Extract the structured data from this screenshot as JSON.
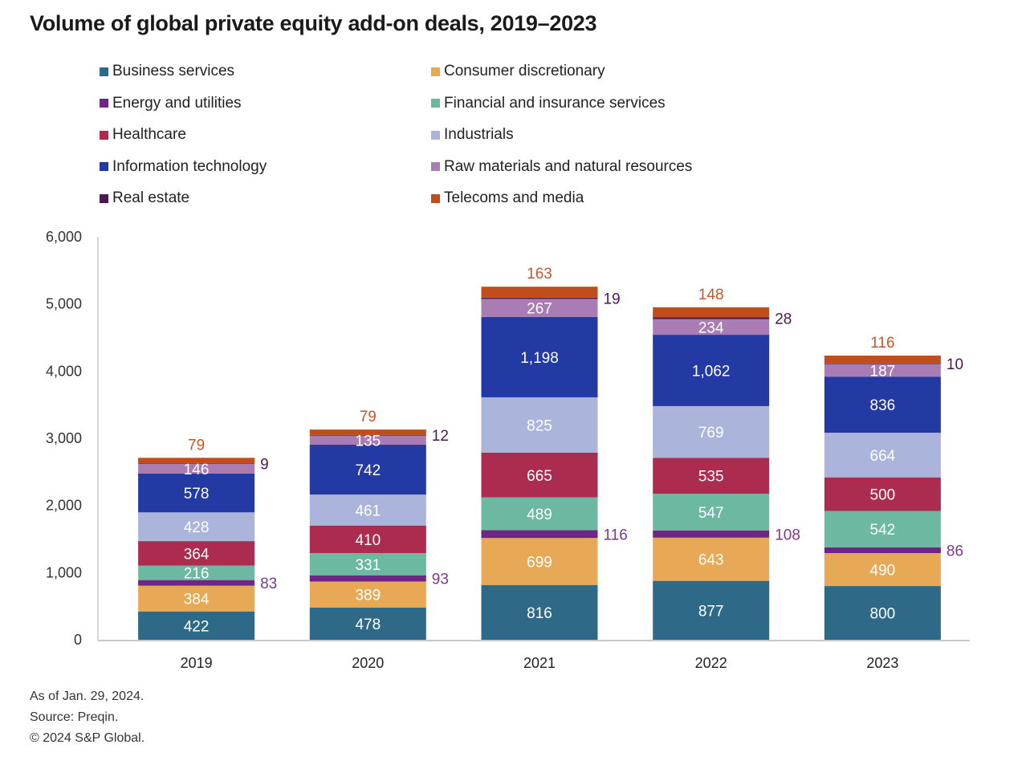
{
  "chart_data": {
    "type": "bar",
    "stacked": true,
    "title": "Volume of global private equity add-on deals, 2019–2023",
    "xlabel": "",
    "ylabel": "",
    "ylim": [
      0,
      6000
    ],
    "yticks": [
      0,
      1000,
      2000,
      3000,
      4000,
      5000,
      6000
    ],
    "ytick_labels": [
      "0",
      "1,000",
      "2,000",
      "3,000",
      "4,000",
      "5,000",
      "6,000"
    ],
    "grid": false,
    "legend_position": "top",
    "categories": [
      "2019",
      "2020",
      "2021",
      "2022",
      "2023"
    ],
    "series": [
      {
        "name": "Business services",
        "color": "#2e6a87",
        "values": [
          422,
          478,
          816,
          877,
          800
        ],
        "label_position": "inside"
      },
      {
        "name": "Consumer discretionary",
        "color": "#e8a957",
        "values": [
          384,
          389,
          699,
          643,
          490
        ],
        "label_position": "inside"
      },
      {
        "name": "Energy and utilities",
        "color": "#6f2683",
        "values": [
          83,
          93,
          116,
          108,
          86
        ],
        "label_position": "right"
      },
      {
        "name": "Financial and insurance services",
        "color": "#6cb8a0",
        "values": [
          216,
          331,
          489,
          547,
          542
        ],
        "label_position": "inside"
      },
      {
        "name": "Healthcare",
        "color": "#ab2c4f",
        "values": [
          364,
          410,
          665,
          535,
          500
        ],
        "label_position": "inside"
      },
      {
        "name": "Industrials",
        "color": "#abb5dc",
        "values": [
          428,
          461,
          825,
          769,
          664
        ],
        "label_position": "inside"
      },
      {
        "name": "Information technology",
        "color": "#2339a3",
        "values": [
          578,
          742,
          1198,
          1062,
          836
        ],
        "label_position": "inside"
      },
      {
        "name": "Raw materials and natural resources",
        "color": "#a97db4",
        "values": [
          146,
          135,
          267,
          234,
          187
        ],
        "label_position": "inside"
      },
      {
        "name": "Real estate",
        "color": "#4a1a4e",
        "values": [
          9,
          12,
          19,
          28,
          10
        ],
        "label_position": "right"
      },
      {
        "name": "Telecoms and media",
        "color": "#c04d1c",
        "values": [
          79,
          79,
          163,
          148,
          116
        ],
        "label_position": "top"
      }
    ],
    "data_labels": {
      "Business services": [
        "422",
        "478",
        "816",
        "877",
        "800"
      ],
      "Consumer discretionary": [
        "384",
        "389",
        "699",
        "643",
        "490"
      ],
      "Energy and utilities": [
        "83",
        "93",
        "116",
        "108",
        "86"
      ],
      "Financial and insurance services": [
        "216",
        "331",
        "489",
        "547",
        "542"
      ],
      "Healthcare": [
        "364",
        "410",
        "665",
        "535",
        "500"
      ],
      "Industrials": [
        "428",
        "461",
        "825",
        "769",
        "664"
      ],
      "Information technology": [
        "578",
        "742",
        "1,198",
        "1,062",
        "836"
      ],
      "Raw materials and natural resources": [
        "146",
        "135",
        "267",
        "234",
        "187"
      ],
      "Real estate": [
        "9",
        "12",
        "19",
        "28",
        "10"
      ],
      "Telecoms and media": [
        "79",
        "79",
        "163",
        "148",
        "116"
      ]
    },
    "outside_label_colors": {
      "Energy and utilities": "#7a3a8c",
      "Real estate": "#4a1a4e",
      "Telecoms and media": "#c9562a"
    }
  },
  "legend": {
    "columns": 2,
    "items": [
      "Business services",
      "Consumer discretionary",
      "Energy and utilities",
      "Financial and insurance services",
      "Healthcare",
      "Industrials",
      "Information technology",
      "Raw materials and natural resources",
      "Real estate",
      "Telecoms and media"
    ]
  },
  "footnotes": [
    "As of Jan. 29, 2024.",
    "Source: Preqin.",
    "© 2024 S&P Global."
  ]
}
